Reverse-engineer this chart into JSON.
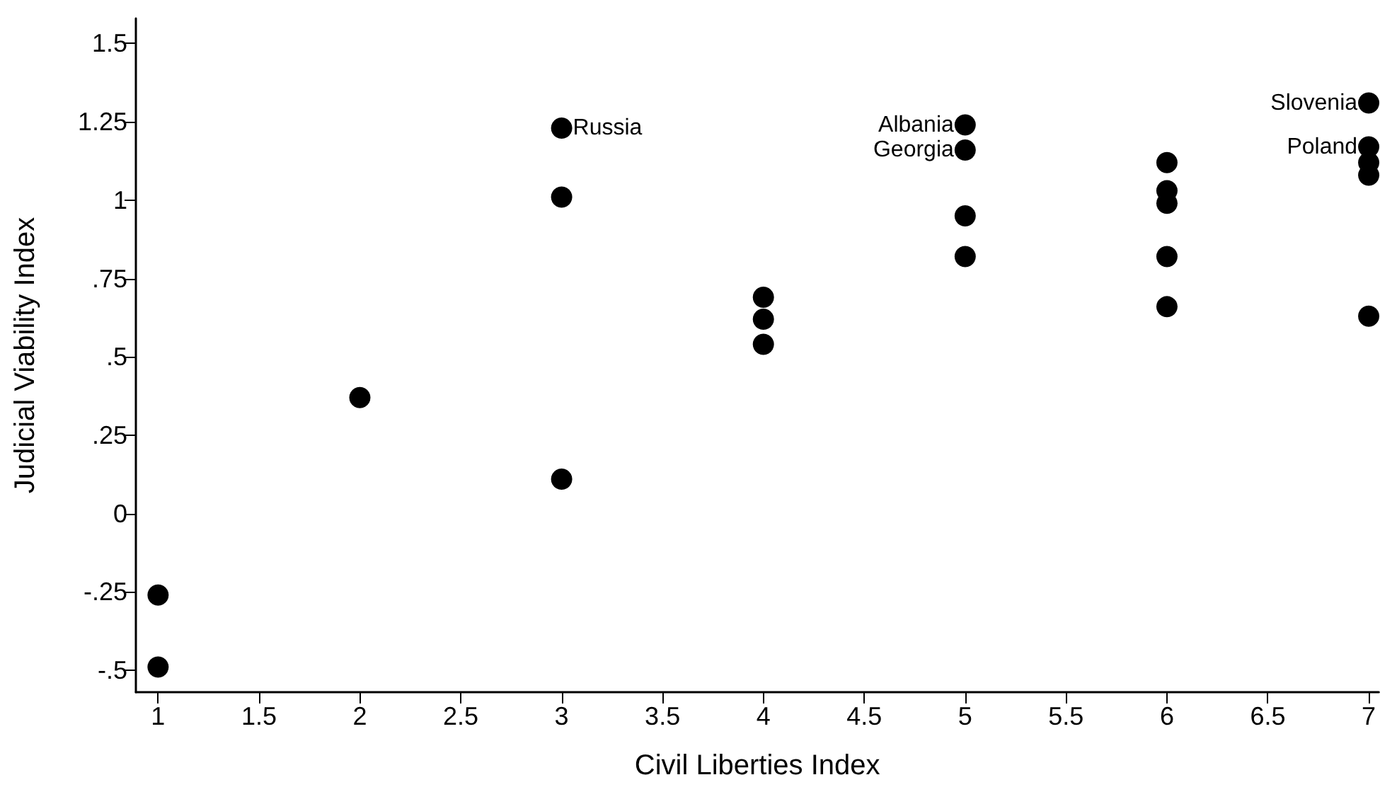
{
  "chart_data": {
    "type": "scatter",
    "xlabel": "Civil Liberties Index",
    "ylabel": "Judicial Viability Index",
    "xlim": [
      0.89,
      7.05
    ],
    "ylim": [
      -0.57,
      1.58
    ],
    "xticks": [
      1,
      1.5,
      2,
      2.5,
      3,
      3.5,
      4,
      4.5,
      5,
      5.5,
      6,
      6.5,
      7
    ],
    "yticks": [
      {
        "value": -0.5,
        "label": "-.5"
      },
      {
        "value": -0.25,
        "label": "-.25"
      },
      0,
      {
        "value": 0.25,
        "label": ".25"
      },
      {
        "value": 0.5,
        "label": ".5"
      },
      {
        "value": 0.75,
        "label": ".75"
      },
      1,
      1.25,
      1.5
    ],
    "grid": false,
    "marker": "circle",
    "series": [
      {
        "color": "#000000",
        "x": [
          1,
          1,
          2,
          3,
          3,
          3,
          4,
          4,
          4,
          5,
          5,
          5,
          5,
          6,
          6,
          6,
          6,
          6,
          7,
          7,
          7,
          7,
          7
        ],
        "values": [
          -0.26,
          -0.49,
          0.37,
          1.23,
          1.01,
          0.11,
          0.69,
          0.62,
          0.54,
          1.24,
          1.16,
          0.95,
          0.82,
          1.12,
          1.03,
          0.99,
          0.82,
          0.66,
          1.31,
          1.17,
          1.12,
          1.08,
          0.63
        ]
      }
    ],
    "annotations": [
      {
        "text": "Russia",
        "x": 3,
        "y": 1.23
      },
      {
        "text": "Albania",
        "x": 5,
        "y": 1.24
      },
      {
        "text": "Georgia",
        "x": 5,
        "y": 1.16
      },
      {
        "text": "Slovenia",
        "x": 7,
        "y": 1.31
      },
      {
        "text": "Poland",
        "x": 7,
        "y": 1.17
      }
    ]
  }
}
